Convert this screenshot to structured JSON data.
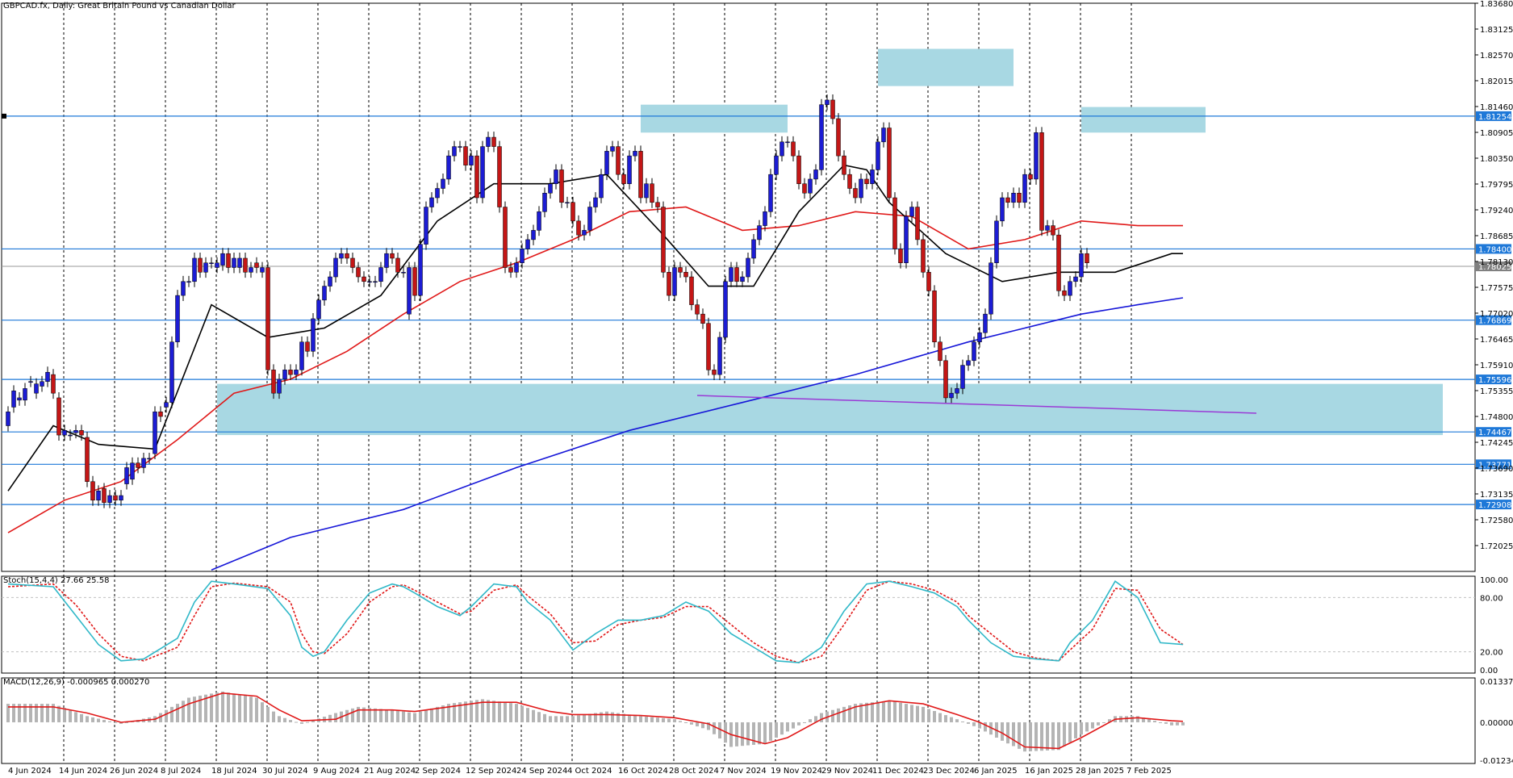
{
  "header": {
    "title": "GBPCAD.fx, Daily:  Great Britain Pound vs Canadian Dollar",
    "stoch_label": "Stoch(15,4,4) 27.66 25.58",
    "macd_label": "MACD(12,26,9) -0.000965 0.000270"
  },
  "colors": {
    "bull": "#1c1cd4",
    "bear": "#c41616",
    "zone": "#a8d8e3",
    "level_line": "#1e78d8",
    "ma_fast": "#000000",
    "ma_mid": "#e01818",
    "ma_slow": "#1616d8",
    "trend": "#9a3ad6",
    "stoch_main": "#30b8c8",
    "stoch_signal": "#e01818",
    "macd_hist": "#b4b4b4",
    "macd_signal": "#e01818"
  },
  "chart_data": [
    {
      "type": "candlestick",
      "title": "GBPCAD.fx, Daily:  Great Britain Pound vs Canadian Dollar",
      "ylim": [
        1.7147,
        1.8368
      ],
      "y_ticks": [
        "1.83680",
        "1.83125",
        "1.82570",
        "1.82015",
        "1.81460",
        "1.80905",
        "1.80350",
        "1.79795",
        "1.79240",
        "1.78685",
        "1.78130",
        "1.77575",
        "1.77020",
        "1.76465",
        "1.75910",
        "1.75355",
        "1.74800",
        "1.74245",
        "1.73690",
        "1.73135",
        "1.72580",
        "1.72025"
      ],
      "x_ticks": [
        "4 Jun 2024",
        "14 Jun 2024",
        "26 Jun 2024",
        "8 Jul 2024",
        "18 Jul 2024",
        "30 Jul 2024",
        "9 Aug 2024",
        "21 Aug 2024",
        "2 Sep 2024",
        "12 Sep 2024",
        "24 Sep 2024",
        "4 Oct 2024",
        "16 Oct 2024",
        "28 Oct 2024",
        "7 Nov 2024",
        "19 Nov 2024",
        "29 Nov 2024",
        "11 Dec 2024",
        "23 Dec 2024",
        "6 Jan 2025",
        "16 Jan 2025",
        "28 Jan 2025",
        "7 Feb 2025"
      ],
      "price_levels": [
        "1.81254",
        "1.78400",
        "1.76869",
        "1.75596",
        "1.74467",
        "1.73771",
        "1.72908"
      ],
      "current_price": "1.78025",
      "series": [
        {
          "name": "OHLC",
          "key": "closes",
          "values": [
            1.749,
            1.7535,
            1.752,
            1.754,
            1.7555,
            1.755,
            1.7555,
            1.7575,
            1.753,
            1.744,
            1.745,
            1.744,
            1.745,
            1.744,
            1.734,
            1.73,
            1.732,
            1.7295,
            1.731,
            1.73,
            1.731,
            1.737,
            1.738,
            1.737,
            1.739,
            1.739,
            1.749,
            1.748,
            1.751,
            1.764,
            1.774,
            1.777,
            1.777,
            1.782,
            1.779,
            1.781,
            1.781,
            1.781,
            1.783,
            1.78,
            1.782,
            1.782,
            1.779,
            1.78,
            1.78,
            1.78,
            1.758,
            1.753,
            1.756,
            1.758,
            1.757,
            1.758,
            1.764,
            1.762,
            1.769,
            1.773,
            1.776,
            1.778,
            1.782,
            1.783,
            1.782,
            1.78,
            1.778,
            1.777,
            1.777,
            1.777,
            1.78,
            1.783,
            1.782,
            1.779,
            1.779,
            1.78,
            1.774,
            1.785,
            1.793,
            1.795,
            1.797,
            1.799,
            1.804,
            1.806,
            1.806,
            1.802,
            1.804,
            1.795,
            1.806,
            1.808,
            1.806,
            1.793,
            1.78,
            1.779,
            1.781,
            1.784,
            1.786,
            1.788,
            1.792,
            1.796,
            1.798,
            1.801,
            1.794,
            1.794,
            1.79,
            1.787,
            1.788,
            1.793,
            1.795,
            1.8,
            1.805,
            1.806,
            1.8,
            1.798,
            1.804,
            1.805,
            1.795,
            1.798,
            1.794,
            1.793,
            1.779,
            1.774,
            1.78,
            1.779,
            1.778,
            1.772,
            1.77,
            1.768,
            1.758,
            1.757,
            1.765,
            1.777,
            1.78,
            1.777,
            1.778,
            1.782,
            1.786,
            1.789,
            1.792,
            1.8,
            1.804,
            1.807,
            1.807,
            1.804,
            1.798,
            1.796,
            1.799,
            1.801,
            1.815,
            1.816,
            1.812,
            1.804,
            1.8,
            1.797,
            1.795,
            1.799,
            1.798,
            1.801,
            1.807,
            1.81,
            1.795,
            1.784,
            1.781,
            1.791,
            1.793,
            1.786,
            1.779,
            1.775,
            1.764,
            1.76,
            1.752,
            1.753,
            1.754,
            1.759,
            1.76,
            1.764,
            1.766,
            1.77,
            1.781,
            1.79,
            1.795,
            1.794,
            1.796,
            1.794,
            1.8,
            1.799,
            1.809,
            1.788,
            1.789,
            1.787,
            1.775,
            1.774,
            1.777,
            1.778,
            1.783,
            1.781
          ]
        },
        {
          "name": "OHLC",
          "key": "opens",
          "values": [
            1.746,
            1.75,
            1.7515,
            1.7515,
            1.7555,
            1.753,
            1.7545,
            1.7555,
            1.757,
            1.752,
            1.744,
            1.744,
            1.7445,
            1.745,
            1.7435,
            1.734,
            1.73,
            1.7325,
            1.7295,
            1.731,
            1.73,
            1.7335,
            1.7345,
            1.738,
            1.737,
            1.739,
            1.74,
            1.749,
            1.75,
            1.751,
            1.764,
            1.774,
            1.777,
            1.777,
            1.782,
            1.779,
            1.781,
            1.78,
            1.7805,
            1.783,
            1.78,
            1.78,
            1.782,
            1.779,
            1.781,
            1.779,
            1.78,
            1.758,
            1.753,
            1.756,
            1.758,
            1.757,
            1.758,
            1.764,
            1.762,
            1.769,
            1.773,
            1.776,
            1.778,
            1.782,
            1.783,
            1.782,
            1.78,
            1.778,
            1.777,
            1.777,
            1.777,
            1.78,
            1.783,
            1.782,
            1.779,
            1.77,
            1.78,
            1.774,
            1.785,
            1.793,
            1.795,
            1.797,
            1.799,
            1.804,
            1.806,
            1.806,
            1.802,
            1.804,
            1.795,
            1.806,
            1.808,
            1.806,
            1.793,
            1.78,
            1.779,
            1.781,
            1.784,
            1.786,
            1.788,
            1.792,
            1.796,
            1.798,
            1.801,
            1.794,
            1.794,
            1.79,
            1.787,
            1.788,
            1.793,
            1.795,
            1.8,
            1.805,
            1.806,
            1.8,
            1.798,
            1.804,
            1.805,
            1.795,
            1.798,
            1.794,
            1.793,
            1.779,
            1.774,
            1.78,
            1.779,
            1.778,
            1.772,
            1.77,
            1.768,
            1.758,
            1.757,
            1.765,
            1.777,
            1.78,
            1.777,
            1.778,
            1.782,
            1.786,
            1.789,
            1.792,
            1.8,
            1.804,
            1.807,
            1.807,
            1.804,
            1.798,
            1.796,
            1.799,
            1.801,
            1.815,
            1.816,
            1.812,
            1.804,
            1.8,
            1.797,
            1.795,
            1.799,
            1.798,
            1.801,
            1.807,
            1.81,
            1.795,
            1.784,
            1.781,
            1.791,
            1.793,
            1.786,
            1.779,
            1.775,
            1.764,
            1.76,
            1.752,
            1.753,
            1.754,
            1.759,
            1.76,
            1.764,
            1.766,
            1.77,
            1.781,
            1.79,
            1.795,
            1.794,
            1.796,
            1.794,
            1.8,
            1.799,
            1.809,
            1.788,
            1.789,
            1.787,
            1.775,
            1.774,
            1.777,
            1.778,
            1.783
          ]
        },
        {
          "name": "MA",
          "key": "ma_fast",
          "x": [
            0,
            8,
            16,
            26,
            36,
            46,
            56,
            66,
            76,
            86,
            96,
            106,
            116,
            124,
            132,
            140,
            148,
            152,
            156,
            166,
            176,
            186,
            196,
            206,
            208
          ],
          "values": [
            1.732,
            1.746,
            1.742,
            1.741,
            1.772,
            1.765,
            1.767,
            1.774,
            1.79,
            1.798,
            1.798,
            1.8,
            1.787,
            1.776,
            1.776,
            1.792,
            1.802,
            1.801,
            1.794,
            1.783,
            1.777,
            1.779,
            1.779,
            1.783,
            1.783
          ]
        },
        {
          "name": "MA",
          "key": "ma_mid",
          "x": [
            0,
            10,
            20,
            30,
            40,
            50,
            60,
            70,
            80,
            90,
            100,
            110,
            120,
            130,
            140,
            150,
            160,
            170,
            180,
            190,
            200,
            208
          ],
          "values": [
            1.723,
            1.73,
            1.734,
            1.743,
            1.753,
            1.756,
            1.762,
            1.77,
            1.777,
            1.781,
            1.786,
            1.792,
            1.793,
            1.788,
            1.789,
            1.792,
            1.791,
            1.784,
            1.786,
            1.79,
            1.789,
            1.789
          ]
        },
        {
          "name": "MA",
          "key": "ma_slow",
          "x": [
            36,
            50,
            70,
            90,
            110,
            130,
            150,
            170,
            180,
            190,
            200,
            208
          ],
          "values": [
            1.715,
            1.722,
            1.728,
            1.737,
            1.745,
            1.751,
            1.757,
            1.764,
            1.767,
            1.77,
            1.772,
            1.7735
          ]
        }
      ],
      "zones": [
        {
          "i0": 37,
          "i1": 254,
          "y0": 1.755,
          "y1": 1.744
        },
        {
          "i0": 112,
          "i1": 138,
          "y0": 1.815,
          "y1": 1.809
        },
        {
          "i0": 154,
          "i1": 178,
          "y0": 1.827,
          "y1": 1.819
        },
        {
          "i0": 190,
          "i1": 212,
          "y0": 1.8145,
          "y1": 1.809
        }
      ],
      "trendline": {
        "i0": 122,
        "y0": 1.7525,
        "i1": 221,
        "y1": 1.7487
      },
      "grid": true
    },
    {
      "type": "line",
      "ylim": [
        0,
        100
      ],
      "y_ticks": [
        "100.00",
        "80.00",
        "20.00",
        "0.00"
      ],
      "series": [
        {
          "name": "Stoch(15,4,4)",
          "key": "stoch_main",
          "x": [
            0,
            8,
            12,
            16,
            20,
            24,
            30,
            33,
            36,
            40,
            46,
            50,
            52,
            54,
            56,
            60,
            64,
            68,
            70,
            72,
            76,
            80,
            82,
            86,
            90,
            92,
            96,
            100,
            104,
            108,
            112,
            116,
            120,
            124,
            128,
            132,
            136,
            140,
            144,
            148,
            152,
            156,
            160,
            164,
            168,
            170,
            174,
            178,
            182,
            186,
            188,
            192,
            196,
            200,
            204,
            208
          ],
          "values": [
            95,
            92,
            60,
            28,
            10,
            12,
            35,
            75,
            98,
            95,
            90,
            60,
            25,
            15,
            20,
            55,
            85,
            95,
            92,
            85,
            70,
            60,
            70,
            95,
            92,
            75,
            55,
            22,
            40,
            55,
            55,
            60,
            75,
            65,
            40,
            25,
            10,
            8,
            25,
            65,
            95,
            98,
            92,
            85,
            70,
            55,
            30,
            15,
            12,
            10,
            30,
            55,
            98,
            80,
            30,
            28
          ]
        },
        {
          "name": "Stoch(15,4,4)",
          "key": "stoch_signal",
          "x": [
            0,
            8,
            12,
            16,
            20,
            24,
            30,
            33,
            36,
            40,
            46,
            50,
            52,
            54,
            56,
            60,
            64,
            68,
            70,
            72,
            76,
            80,
            82,
            86,
            90,
            92,
            96,
            100,
            104,
            108,
            112,
            116,
            120,
            124,
            128,
            132,
            136,
            140,
            144,
            148,
            152,
            156,
            160,
            164,
            168,
            170,
            174,
            178,
            182,
            186,
            188,
            192,
            196,
            200,
            204,
            208
          ],
          "values": [
            92,
            95,
            72,
            40,
            15,
            10,
            25,
            60,
            92,
            96,
            92,
            75,
            40,
            20,
            18,
            40,
            75,
            92,
            94,
            88,
            75,
            62,
            65,
            88,
            94,
            82,
            62,
            30,
            32,
            50,
            55,
            58,
            70,
            70,
            50,
            30,
            15,
            8,
            15,
            50,
            88,
            98,
            95,
            88,
            75,
            60,
            40,
            20,
            13,
            10,
            22,
            45,
            90,
            88,
            45,
            28
          ]
        },
        {
          "name": "MACD(12,26,9)",
          "key": "macd_hist",
          "x": [
            0,
            8,
            14,
            20,
            26,
            32,
            38,
            44,
            48,
            52,
            58,
            62,
            68,
            72,
            78,
            84,
            90,
            96,
            100,
            106,
            112,
            118,
            124,
            128,
            134,
            138,
            144,
            150,
            156,
            162,
            168,
            172,
            176,
            180,
            186,
            190,
            196,
            200,
            206,
            208
          ],
          "values": [
            0.006,
            0.006,
            0.002,
            -0.0005,
            0.002,
            0.008,
            0.01,
            0.008,
            0.002,
            -0.0005,
            0.003,
            0.005,
            0.004,
            0.003,
            0.006,
            0.0075,
            0.006,
            0.002,
            0.002,
            0.0035,
            0.002,
            0.001,
            -0.0025,
            -0.008,
            -0.007,
            -0.003,
            0.003,
            0.006,
            0.007,
            0.005,
            0.001,
            -0.002,
            -0.006,
            -0.0095,
            -0.009,
            -0.004,
            0.002,
            0.002,
            -0.001,
            -0.001
          ]
        },
        {
          "name": "MACD(12,26,9)",
          "key": "macd_signal",
          "x": [
            0,
            8,
            14,
            20,
            26,
            32,
            38,
            44,
            48,
            52,
            58,
            62,
            68,
            72,
            78,
            84,
            90,
            96,
            100,
            106,
            112,
            118,
            124,
            128,
            134,
            138,
            144,
            150,
            156,
            162,
            168,
            172,
            176,
            180,
            186,
            190,
            196,
            200,
            206,
            208
          ],
          "values": [
            0.005,
            0.005,
            0.003,
            0.0,
            0.001,
            0.006,
            0.0095,
            0.0085,
            0.004,
            0.0005,
            0.001,
            0.004,
            0.004,
            0.0035,
            0.005,
            0.0065,
            0.0065,
            0.0035,
            0.0025,
            0.0025,
            0.0022,
            0.0015,
            -0.0005,
            -0.004,
            -0.007,
            -0.005,
            0.001,
            0.005,
            0.007,
            0.006,
            0.0025,
            0.0,
            -0.0035,
            -0.008,
            -0.0085,
            -0.005,
            0.001,
            0.0015,
            0.0005,
            0.0003
          ]
        }
      ],
      "ylim_macd": [
        -0.012342,
        0.013375
      ],
      "y_ticks_macd": [
        "0.013375",
        "0.000000",
        "-0.012342"
      ]
    }
  ]
}
